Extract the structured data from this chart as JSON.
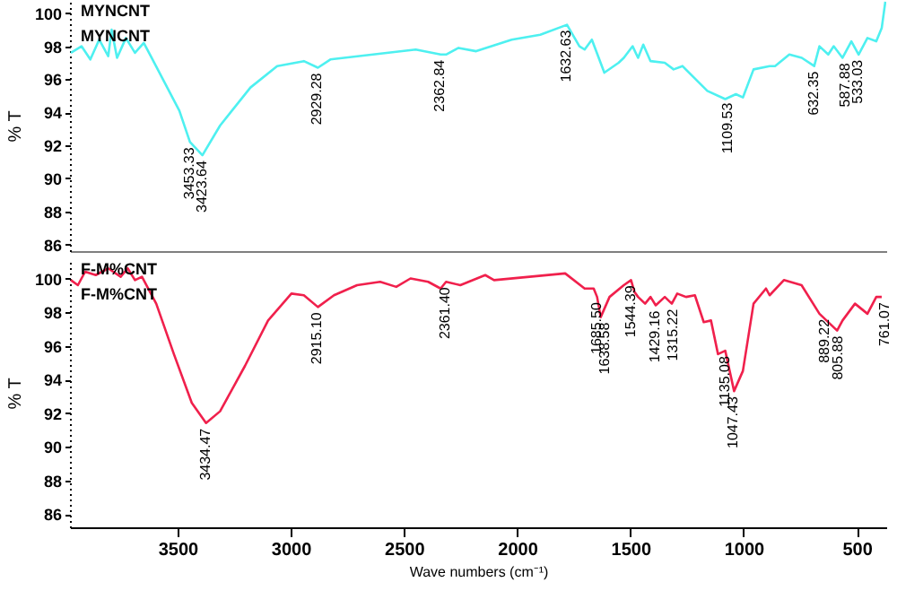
{
  "chart_data": [
    {
      "type": "line",
      "ylabel": "% T",
      "xlim": [
        3975,
        370
      ],
      "ylim": [
        85.6,
        100.8
      ],
      "yticks": [
        86,
        88,
        90,
        92,
        94,
        96,
        98,
        100
      ],
      "tick_labels": "y",
      "grid": false,
      "legend": "top left",
      "line_style": "solid",
      "marker": "none",
      "series": [
        {
          "name": "MYNCNT",
          "color": "#4ef0f0",
          "x": [
            3971,
            3924,
            3885,
            3846,
            3806,
            3791,
            3767,
            3728,
            3688,
            3649,
            3618,
            3492,
            3445,
            3390,
            3312,
            3178,
            3060,
            2942,
            2880,
            2825,
            2448,
            2338,
            2314,
            2259,
            2181,
            2024,
            1898,
            1780,
            1725,
            1702,
            1670,
            1615,
            1552,
            1529,
            1490,
            1466,
            1443,
            1411,
            1348,
            1309,
            1270,
            1160,
            1081,
            1034,
            1003,
            956,
            885,
            861,
            798,
            743,
            688,
            665,
            626,
            602,
            563,
            524,
            492,
            453,
            414,
            390,
            374
          ],
          "values": [
            97.6,
            98.0,
            97.2,
            98.4,
            97.4,
            99.0,
            97.3,
            98.5,
            97.6,
            98.2,
            97.4,
            94.1,
            92.2,
            91.4,
            93.2,
            95.5,
            96.8,
            97.1,
            96.7,
            97.2,
            97.8,
            97.5,
            97.5,
            97.9,
            97.7,
            98.4,
            98.7,
            99.3,
            98.0,
            97.8,
            98.4,
            96.4,
            97.0,
            97.3,
            98.0,
            97.3,
            98.1,
            97.1,
            97.0,
            96.6,
            96.8,
            95.3,
            94.8,
            95.1,
            94.9,
            96.6,
            96.8,
            96.8,
            97.5,
            97.3,
            96.8,
            98.0,
            97.5,
            98.0,
            97.3,
            98.3,
            97.5,
            98.5,
            98.3,
            99.1,
            100.7
          ]
        }
      ],
      "annotations": [
        "MYNCNT",
        {
          "text": "3453.33",
          "x": 3445,
          "y": 92.2
        },
        {
          "text": "3423.64",
          "x": 3390,
          "y": 91.4
        },
        {
          "text": "2929.28",
          "x": 2880,
          "y": 96.7
        },
        {
          "text": "2362.84",
          "x": 2338,
          "y": 97.5
        },
        {
          "text": "1632.63",
          "x": 1780,
          "y": 99.3
        },
        {
          "text": "1109.53",
          "x": 1066,
          "y": 94.9
        },
        {
          "text": "632.35",
          "x": 688,
          "y": 96.8
        },
        {
          "text": "587.88",
          "x": 547,
          "y": 97.3
        },
        {
          "text": "533.03",
          "x": 492,
          "y": 97.5
        }
      ]
    },
    {
      "type": "line",
      "ylabel": "% T",
      "xlabel": "Wave numbers (cm⁻¹)",
      "xlim": [
        3975,
        370
      ],
      "ylim": [
        85.2,
        101.2
      ],
      "xticks": [
        3500,
        3000,
        2500,
        2000,
        1500,
        1000,
        500
      ],
      "yticks": [
        86,
        88,
        90,
        92,
        94,
        96,
        98,
        100
      ],
      "grid": false,
      "legend": "top left",
      "line_style": "solid",
      "marker": "none",
      "series": [
        {
          "name": "F-M%CNT",
          "color": "#f0204c",
          "x": [
            3971,
            3940,
            3908,
            3861,
            3806,
            3751,
            3720,
            3688,
            3657,
            3594,
            3516,
            3437,
            3374,
            3312,
            3202,
            3100,
            2997,
            2942,
            2880,
            2809,
            2707,
            2605,
            2534,
            2471,
            2393,
            2338,
            2314,
            2251,
            2141,
            2102,
            1788,
            1702,
            1662,
            1647,
            1631,
            1592,
            1529,
            1497,
            1482,
            1466,
            1435,
            1411,
            1388,
            1348,
            1317,
            1293,
            1254,
            1215,
            1176,
            1144,
            1113,
            1081,
            1042,
            1003,
            956,
            901,
            885,
            822,
            744,
            665,
            587,
            563,
            508,
            453,
            414,
            390
          ],
          "values": [
            99.9,
            99.6,
            100.4,
            100.2,
            100.6,
            100.1,
            100.6,
            99.9,
            100.1,
            98.5,
            95.5,
            92.6,
            91.4,
            92.1,
            94.8,
            97.5,
            99.1,
            99.0,
            98.3,
            99.0,
            99.6,
            99.8,
            99.5,
            100.0,
            99.8,
            99.4,
            99.8,
            99.6,
            100.2,
            99.9,
            100.3,
            99.4,
            99.4,
            98.9,
            97.7,
            98.9,
            99.6,
            99.9,
            99.2,
            98.9,
            98.5,
            98.9,
            98.4,
            98.9,
            98.5,
            99.1,
            98.9,
            99.0,
            97.4,
            97.5,
            95.5,
            95.7,
            93.3,
            94.5,
            98.5,
            99.4,
            99.0,
            99.9,
            99.6,
            97.9,
            96.9,
            97.5,
            98.5,
            97.9,
            98.9,
            98.9
          ]
        }
      ],
      "annotations": [
        "F-M%CNT",
        {
          "text": "3434.47",
          "x": 3374,
          "y": 91.4
        },
        {
          "text": "2915.10",
          "x": 2880,
          "y": 98.3
        },
        {
          "text": "2361.40",
          "x": 2314,
          "y": 99.8
        },
        {
          "text": "1685.50",
          "x": 1647,
          "y": 98.9
        },
        {
          "text": "1638.58",
          "x": 1608,
          "y": 97.7
        },
        {
          "text": "1544.39",
          "x": 1497,
          "y": 99.9
        },
        {
          "text": "1429.16",
          "x": 1388,
          "y": 98.4
        },
        {
          "text": "1315.22",
          "x": 1309,
          "y": 98.5
        },
        {
          "text": "1135.08",
          "x": 1081,
          "y": 95.7
        },
        {
          "text": "1047.43",
          "x": 1042,
          "y": 93.3
        },
        {
          "text": "889.22",
          "x": 641,
          "y": 97.9
        },
        {
          "text": "805.88",
          "x": 579,
          "y": 96.9
        },
        {
          "text": "761.07",
          "x": 374,
          "y": 98.9
        }
      ]
    }
  ]
}
